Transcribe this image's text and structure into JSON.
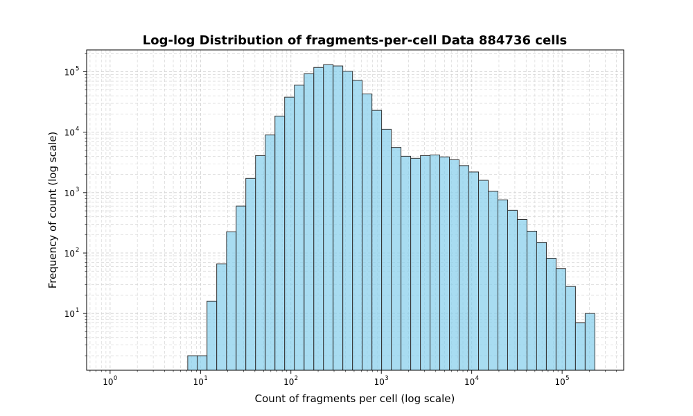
{
  "chart_data": {
    "type": "bar",
    "title": "Log-log Distribution of fragments-per-cell Data 884736 cells",
    "xlabel": "Count of fragments per cell (log scale)",
    "ylabel": "Frequency of count (log scale)",
    "xscale": "log",
    "yscale": "log",
    "xlim": [
      0.55,
      480000
    ],
    "ylim": [
      1.15,
      230000
    ],
    "grid": true,
    "bar_color": "#87CEEB",
    "edge_color": "#333333",
    "x_ticks": [
      {
        "value": 1,
        "base": "10",
        "exp": "0"
      },
      {
        "value": 10,
        "base": "10",
        "exp": "1"
      },
      {
        "value": 100,
        "base": "10",
        "exp": "2"
      },
      {
        "value": 1000,
        "base": "10",
        "exp": "3"
      },
      {
        "value": 10000,
        "base": "10",
        "exp": "4"
      },
      {
        "value": 100000,
        "base": "10",
        "exp": "5"
      }
    ],
    "y_ticks": [
      {
        "value": 10,
        "base": "10",
        "exp": "1"
      },
      {
        "value": 100,
        "base": "10",
        "exp": "2"
      },
      {
        "value": 1000,
        "base": "10",
        "exp": "3"
      },
      {
        "value": 10000,
        "base": "10",
        "exp": "4"
      },
      {
        "value": 100000,
        "base": "10",
        "exp": "5"
      }
    ],
    "bin_edges": [
      1,
      1.28,
      1.64,
      2.1,
      2.69,
      3.44,
      4.4,
      5.64,
      7.22,
      9.24,
      11.8,
      15.1,
      19.4,
      24.8,
      31.7,
      40.6,
      52,
      66.6,
      85.2,
      109,
      140,
      179,
      229,
      293,
      375,
      480,
      615,
      787,
      1007,
      1289,
      1651,
      2113,
      2705,
      3462,
      4431,
      5672,
      7261,
      9294,
      11897,
      15229,
      19494,
      24953,
      31940,
      40885,
      52335,
      66991,
      85752,
      109767,
      140506,
      179853,
      230219,
      294691
    ],
    "counts": [
      0,
      0,
      0,
      0,
      0,
      0,
      0,
      0,
      2,
      2,
      16,
      66,
      225,
      600,
      1720,
      4100,
      9000,
      18500,
      38000,
      60000,
      93000,
      118000,
      131000,
      125000,
      102000,
      72000,
      43000,
      23000,
      11200,
      5600,
      4000,
      3700,
      4100,
      4200,
      3900,
      3500,
      2800,
      2200,
      1600,
      1050,
      760,
      510,
      360,
      230,
      150,
      82,
      55,
      28,
      7,
      10,
      0
    ]
  }
}
